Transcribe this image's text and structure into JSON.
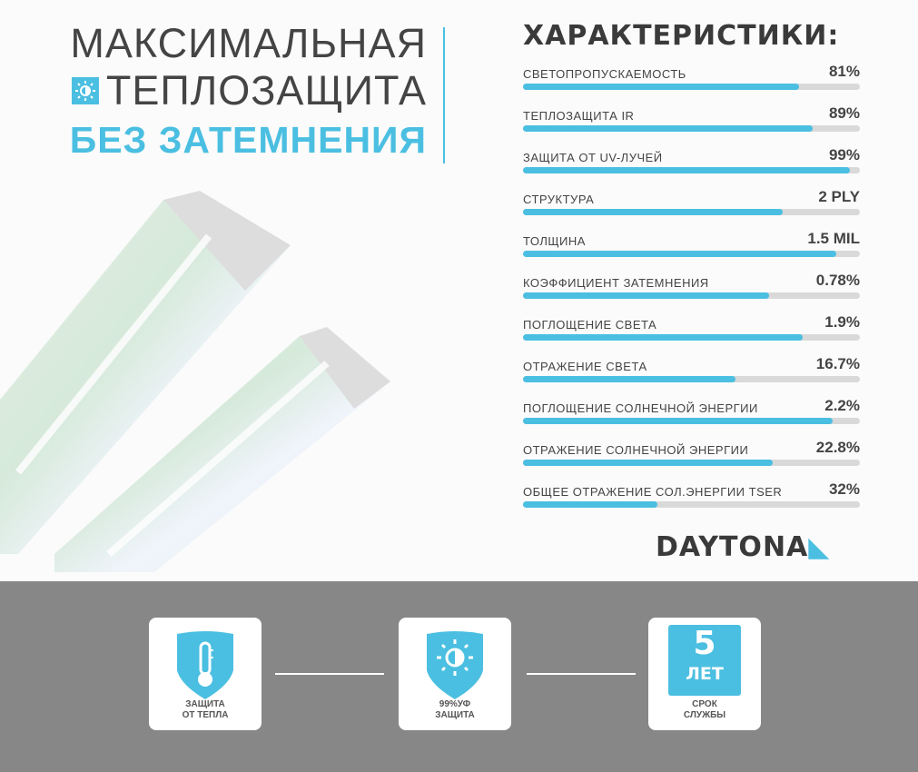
{
  "headline": {
    "line1": "МАКСИМАЛЬНАЯ",
    "line2": "ТЕПЛОЗАЩИТА",
    "line3": "БЕЗ ЗАТЕМНЕНИЯ"
  },
  "characteristics": {
    "title": "ХАРАКТЕРИСТИКИ:",
    "items": [
      {
        "label": "СВЕТОПРОПУСКАЕМОСТЬ",
        "value": "81%",
        "fill": 82
      },
      {
        "label": "ТЕПЛОЗАЩИТА IR",
        "value": "89%",
        "fill": 86
      },
      {
        "label": "ЗАЩИТА ОТ UV-ЛУЧЕЙ",
        "value": "99%",
        "fill": 97
      },
      {
        "label": "СТРУКТУРА",
        "value": "2 PLY",
        "fill": 77
      },
      {
        "label": "ТОЛЩИНА",
        "value": "1.5 MIL",
        "fill": 93
      },
      {
        "label": "КОЭФФИЦИЕНТ ЗАТЕМНЕНИЯ",
        "value": "0.78%",
        "fill": 73
      },
      {
        "label": "ПОГЛОЩЕНИЕ СВЕТА",
        "value": "1.9%",
        "fill": 83
      },
      {
        "label": "ОТРАЖЕНИЕ СВЕТА",
        "value": "16.7%",
        "fill": 63
      },
      {
        "label": "ПОГЛОЩЕНИЕ СОЛНЕЧНОЙ ЭНЕРГИИ",
        "value": "2.2%",
        "fill": 92
      },
      {
        "label": "ОТРАЖЕНИЕ СОЛНЕЧНОЙ ЭНЕРГИИ",
        "value": "22.8%",
        "fill": 74
      },
      {
        "label": "ОБЩЕЕ ОТРАЖЕНИЕ СОЛ.ЭНЕРГИИ TSER",
        "value": "32%",
        "fill": 40
      }
    ]
  },
  "brand": {
    "logo": "DAYTONA"
  },
  "features": [
    {
      "icon": "thermometer-shield-icon",
      "caption1": "ЗАЩИТА",
      "caption2": "ОТ ТЕПЛА"
    },
    {
      "icon": "sun-shield-icon",
      "caption1": "99%УФ",
      "caption2": "ЗАЩИТА"
    },
    {
      "icon": "years-badge-icon",
      "number": "5",
      "unit": "ЛЕТ",
      "caption1": "СРОК",
      "caption2": "СЛУЖБЫ"
    }
  ],
  "colors": {
    "accent": "#4bbfe1",
    "text": "#444444",
    "bottom_bg": "#878787",
    "track": "#d9d9d9"
  }
}
